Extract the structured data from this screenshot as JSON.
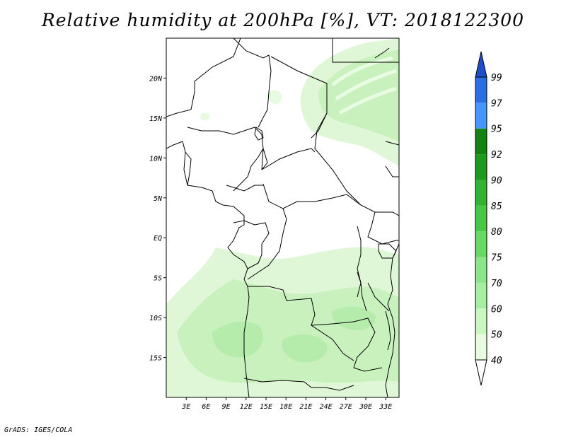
{
  "title": "Relative humidity at 200hPa [%], VT: 2018122300",
  "credit": "GrADS: IGES/COLA",
  "map": {
    "lon_range": [
      0,
      35
    ],
    "lat_range": [
      -20,
      25
    ],
    "x_ticks": [
      "3E",
      "6E",
      "9E",
      "12E",
      "15E",
      "18E",
      "21E",
      "24E",
      "27E",
      "30E",
      "33E"
    ],
    "y_ticks": [
      "20N",
      "15N",
      "10N",
      "5N",
      "EQ",
      "5S",
      "10S",
      "15S"
    ]
  },
  "colorbar": {
    "levels": [
      "40",
      "50",
      "60",
      "70",
      "75",
      "80",
      "85",
      "90",
      "92",
      "95",
      "97",
      "99"
    ],
    "colors": [
      "#ffffff",
      "#e6fbe0",
      "#c8f7c0",
      "#a6efa0",
      "#8be68a",
      "#66d965",
      "#46c844",
      "#32b232",
      "#1e9a1e",
      "#128312",
      "#4696ff",
      "#2a6fe6",
      "#1e4fc8"
    ]
  },
  "chart_data": {
    "type": "heatmap",
    "title": "Relative humidity at 200hPa [%], VT: 2018122300",
    "variable": "Relative humidity at 200hPa [%]",
    "valid_time": "2018122300",
    "lon_range": [
      0,
      35
    ],
    "lat_range": [
      -20,
      25
    ],
    "contour_levels": [
      40,
      50,
      60,
      70,
      75,
      80,
      85,
      90,
      92,
      95,
      97,
      99
    ],
    "regions": [
      {
        "area": "southern half (5S-20S)",
        "range": "40-60"
      },
      {
        "area": "northeast corner (10N-24N, 22E-35E)",
        "range": "40-60"
      },
      {
        "area": "southwest Atlantic (5S-20S, 0-8E)",
        "range": "40-60"
      },
      {
        "area": "central basin",
        "range": "below 40"
      }
    ]
  }
}
